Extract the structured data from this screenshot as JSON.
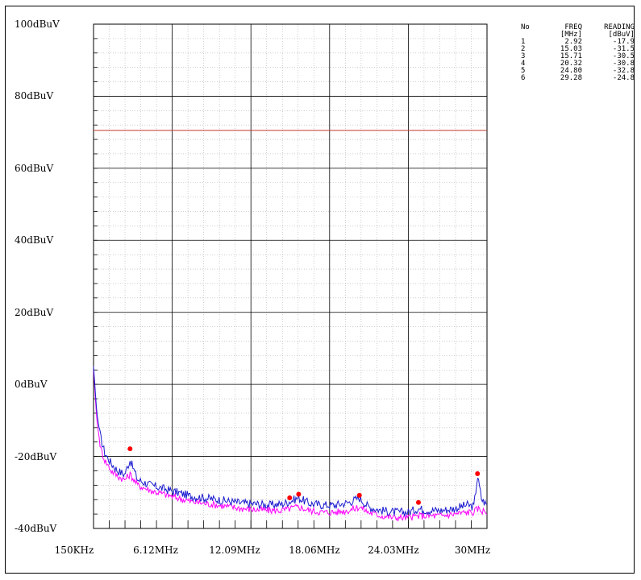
{
  "y_axis_labels": [
    "100dBuV",
    "80dBuV",
    "60dBuV",
    "40dBuV",
    "20dBuV",
    "0dBuV",
    "-20dBuV",
    "-40dBuV"
  ],
  "x_axis_labels": [
    "150KHz",
    "6.12MHz",
    "12.09MHz",
    "18.06MHz",
    "24.03MHz",
    "30MHz"
  ],
  "table": {
    "headers": {
      "no": "No",
      "freq": "FREQ",
      "reading": "READING"
    },
    "units": {
      "freq": "[MHz]",
      "reading": "[dBuV]"
    },
    "rows": [
      {
        "no": "1",
        "freq": "2.92",
        "reading": "-17.9"
      },
      {
        "no": "2",
        "freq": "15.03",
        "reading": "-31.5"
      },
      {
        "no": "3",
        "freq": "15.71",
        "reading": "-30.5"
      },
      {
        "no": "4",
        "freq": "20.32",
        "reading": "-30.8"
      },
      {
        "no": "5",
        "freq": "24.80",
        "reading": "-32.8"
      },
      {
        "no": "6",
        "freq": "29.28",
        "reading": "-24.8"
      }
    ]
  },
  "colors": {
    "limit": "#c0392b",
    "peak_trace": "#1c1cd0",
    "avg_trace": "#ff00ff",
    "marker": "#ff0000",
    "grid_major": "#000000",
    "grid_minor": "#b0b0b0"
  },
  "chart_data": {
    "type": "line",
    "x_unit": "MHz",
    "y_unit": "dBuV",
    "xlim": [
      0.15,
      30
    ],
    "ylim": [
      -40,
      100
    ],
    "grid": true,
    "limit_line": {
      "value": 70.5
    },
    "series": [
      {
        "color": "blue",
        "x": [
          0.15,
          0.4,
          0.7,
          1.0,
          1.5,
          2.0,
          2.5,
          2.92,
          3.5,
          4.5,
          5.5,
          6.5,
          7.5,
          8.5,
          9.5,
          10.5,
          11.5,
          12.5,
          13.5,
          14.5,
          15.03,
          15.71,
          16.5,
          17.5,
          18.5,
          19.5,
          20.32,
          21.0,
          22.0,
          23.0,
          24.0,
          24.8,
          25.5,
          26.5,
          27.5,
          28.5,
          29.0,
          29.28,
          29.6,
          30.0
        ],
        "y": [
          5,
          -8,
          -15,
          -19,
          -22,
          -24,
          -25,
          -21,
          -26.5,
          -28,
          -29,
          -30,
          -31,
          -31.5,
          -32,
          -32.5,
          -33,
          -33.2,
          -33.5,
          -33.2,
          -32.5,
          -31.5,
          -33,
          -33.5,
          -33.5,
          -32.8,
          -31.5,
          -34,
          -35,
          -35.5,
          -35.5,
          -34.5,
          -35,
          -35,
          -34.5,
          -33.5,
          -34,
          -25.5,
          -32,
          -33.5
        ]
      },
      {
        "color": "magenta",
        "x": [
          0.15,
          0.4,
          0.7,
          1.0,
          1.5,
          2.0,
          2.5,
          2.92,
          3.5,
          4.5,
          5.5,
          6.5,
          7.5,
          8.5,
          9.5,
          10.5,
          11.5,
          12.5,
          13.5,
          14.5,
          15.03,
          15.71,
          16.5,
          17.5,
          18.5,
          19.5,
          20.32,
          21.0,
          22.0,
          23.0,
          24.0,
          24.8,
          25.5,
          26.5,
          27.5,
          28.5,
          29.0,
          29.28,
          29.6,
          30.0
        ],
        "y": [
          4,
          -10,
          -18,
          -21,
          -24,
          -25.5,
          -26.5,
          -25,
          -28,
          -29.5,
          -30.5,
          -31.5,
          -32.5,
          -33,
          -33.5,
          -34,
          -34.5,
          -34.8,
          -35,
          -35,
          -34.5,
          -34,
          -35,
          -35.5,
          -35.5,
          -35,
          -34,
          -35.5,
          -36.5,
          -37,
          -37,
          -36.5,
          -36.5,
          -36.5,
          -36,
          -35.5,
          -35.5,
          -34.5,
          -35,
          -35.5
        ]
      }
    ],
    "markers": [
      {
        "no": 1,
        "x": 2.92,
        "y": -17.9
      },
      {
        "no": 2,
        "x": 15.03,
        "y": -31.5
      },
      {
        "no": 3,
        "x": 15.71,
        "y": -30.5
      },
      {
        "no": 4,
        "x": 20.32,
        "y": -30.8
      },
      {
        "no": 5,
        "x": 24.8,
        "y": -32.8
      },
      {
        "no": 6,
        "x": 29.28,
        "y": -24.8
      }
    ]
  }
}
